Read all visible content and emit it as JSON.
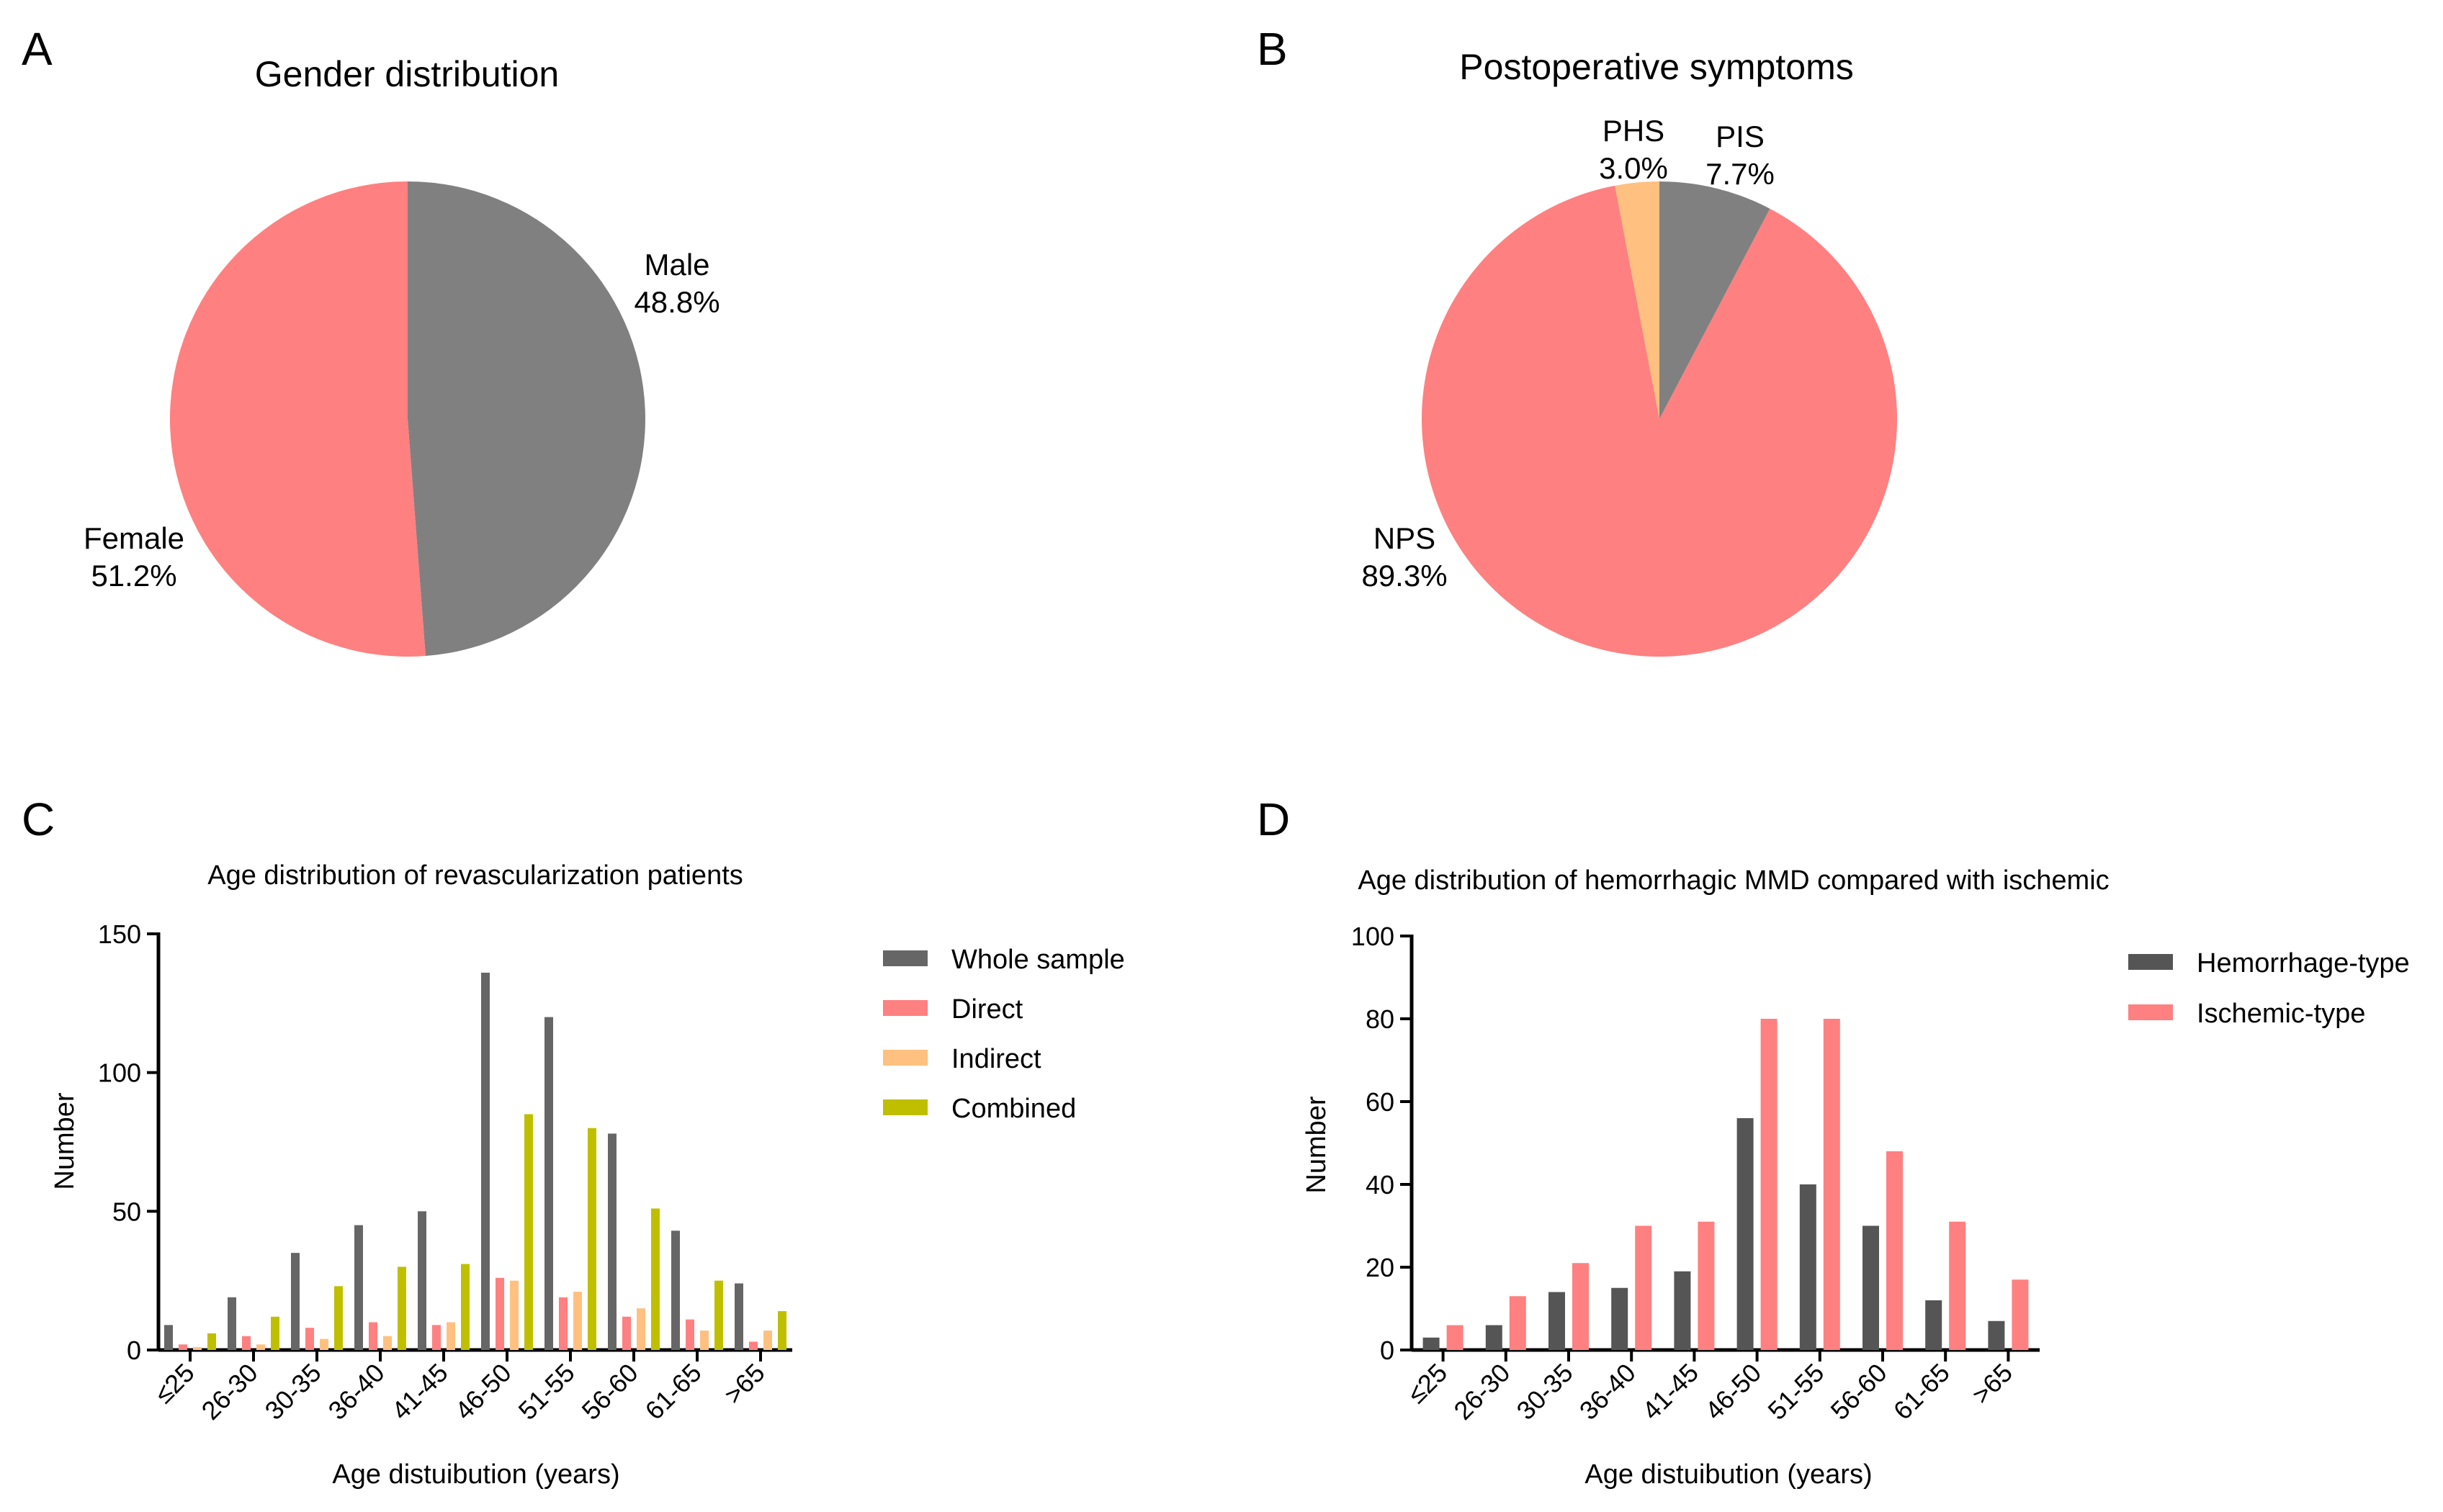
{
  "chart_data": [
    {
      "panel": "A",
      "type": "pie",
      "title": "Gender distribution",
      "slices": [
        {
          "label": "Male",
          "percent_label": "48.8%",
          "value": 48.8,
          "color": "#808080"
        },
        {
          "label": "Female",
          "percent_label": "51.2%",
          "value": 51.2,
          "color": "#FF8080"
        }
      ]
    },
    {
      "panel": "B",
      "type": "pie",
      "title": "Postoperative symptoms",
      "slices": [
        {
          "label": "PIS",
          "percent_label": "7.7%",
          "value": 7.7,
          "color": "#808080"
        },
        {
          "label": "NPS",
          "percent_label": "89.3%",
          "value": 89.3,
          "color": "#FF8080"
        },
        {
          "label": "PHS",
          "percent_label": "3.0%",
          "value": 3.0,
          "color": "#FFC080"
        }
      ]
    },
    {
      "panel": "C",
      "type": "bar",
      "title": "Age distribution of revascularization patients",
      "xlabel": "Age distuibution (years)",
      "ylabel": "Number",
      "ylim": [
        0,
        150
      ],
      "yticks": [
        0,
        50,
        100,
        150
      ],
      "categories": [
        "≤25",
        "26-30",
        "30-35",
        "36-40",
        "41-45",
        "46-50",
        "51-55",
        "56-60",
        "61-65",
        ">65"
      ],
      "series": [
        {
          "name": "Whole sample",
          "color": "#666666",
          "values": [
            9,
            19,
            35,
            45,
            50,
            136,
            120,
            78,
            43,
            24
          ]
        },
        {
          "name": "Direct",
          "color": "#FF8080",
          "values": [
            2,
            5,
            8,
            10,
            9,
            26,
            19,
            12,
            11,
            3
          ]
        },
        {
          "name": "Indirect",
          "color": "#FFC080",
          "values": [
            1,
            2,
            4,
            5,
            10,
            25,
            21,
            15,
            7,
            7
          ]
        },
        {
          "name": "Combined",
          "color": "#BFBF00",
          "values": [
            6,
            12,
            23,
            30,
            31,
            85,
            80,
            51,
            25,
            14
          ]
        }
      ]
    },
    {
      "panel": "D",
      "type": "bar",
      "title": "Age distribution of hemorrhagic MMD compared with ischemic",
      "xlabel": "Age distuibution (years)",
      "ylabel": "Number",
      "ylim": [
        0,
        100
      ],
      "yticks": [
        0,
        20,
        40,
        60,
        80,
        100
      ],
      "categories": [
        "≤25",
        "26-30",
        "30-35",
        "36-40",
        "41-45",
        "46-50",
        "51-55",
        "56-60",
        "61-65",
        ">65"
      ],
      "series": [
        {
          "name": "Hemorrhage-type",
          "color": "#555555",
          "values": [
            3,
            6,
            14,
            15,
            19,
            56,
            40,
            30,
            12,
            7
          ]
        },
        {
          "name": "Ischemic-type",
          "color": "#FF8080",
          "values": [
            6,
            13,
            21,
            30,
            31,
            80,
            80,
            48,
            31,
            17
          ]
        }
      ]
    }
  ]
}
